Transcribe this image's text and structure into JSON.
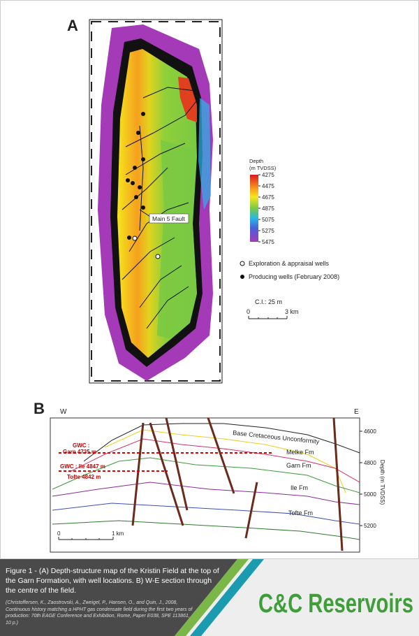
{
  "panel_a": {
    "label": "A",
    "legend": {
      "title": "Depth",
      "unit": "(m TVDSS)",
      "ticks": [
        4275,
        4475,
        4675,
        4875,
        5075,
        5275,
        5475
      ]
    },
    "fault_label": "Main 5 Fault",
    "well_legend": [
      "Exploration & appraisal wells",
      "Producing wells (February 2008)"
    ],
    "contour_interval": "C.I.: 25 m",
    "scale": [
      "0",
      "3 km"
    ]
  },
  "panel_b": {
    "label": "B",
    "west": "W",
    "east": "E",
    "unconformity": "Base Cretaceous Unconformity",
    "formations": [
      "Melke Fm",
      "Garn Fm",
      "Ile Fm",
      "Tofte Fm"
    ],
    "gwc_garn": [
      "GWC :",
      "Garn 4735 m"
    ],
    "gwc_ile": [
      "GWC : Ile 4847 m",
      "Tofte 4842 m"
    ],
    "axis_label": "Depth (m TVDSS)",
    "depth_ticks": [
      4600,
      4800,
      5000,
      5200
    ],
    "scale": [
      "0",
      "1 km"
    ]
  },
  "caption": {
    "text": "Figure 1 - (A) Depth-structure map of the Kristin Field at the top of the Garn Formation, with well locations. B) W-E section through the centre of the field.",
    "citation": "(Christoffersen, K., Zaostrovski, A., Zweigel, P., Hansen, O., and Quin, J., 2008, Continuous history matching a HPHT gas condensate field during the first two years of production: 70th EAGE Conference and Exhibition, Rome, Paper E038, SPE 113861, 10 p.)"
  },
  "logo": "C&C Reservoirs"
}
